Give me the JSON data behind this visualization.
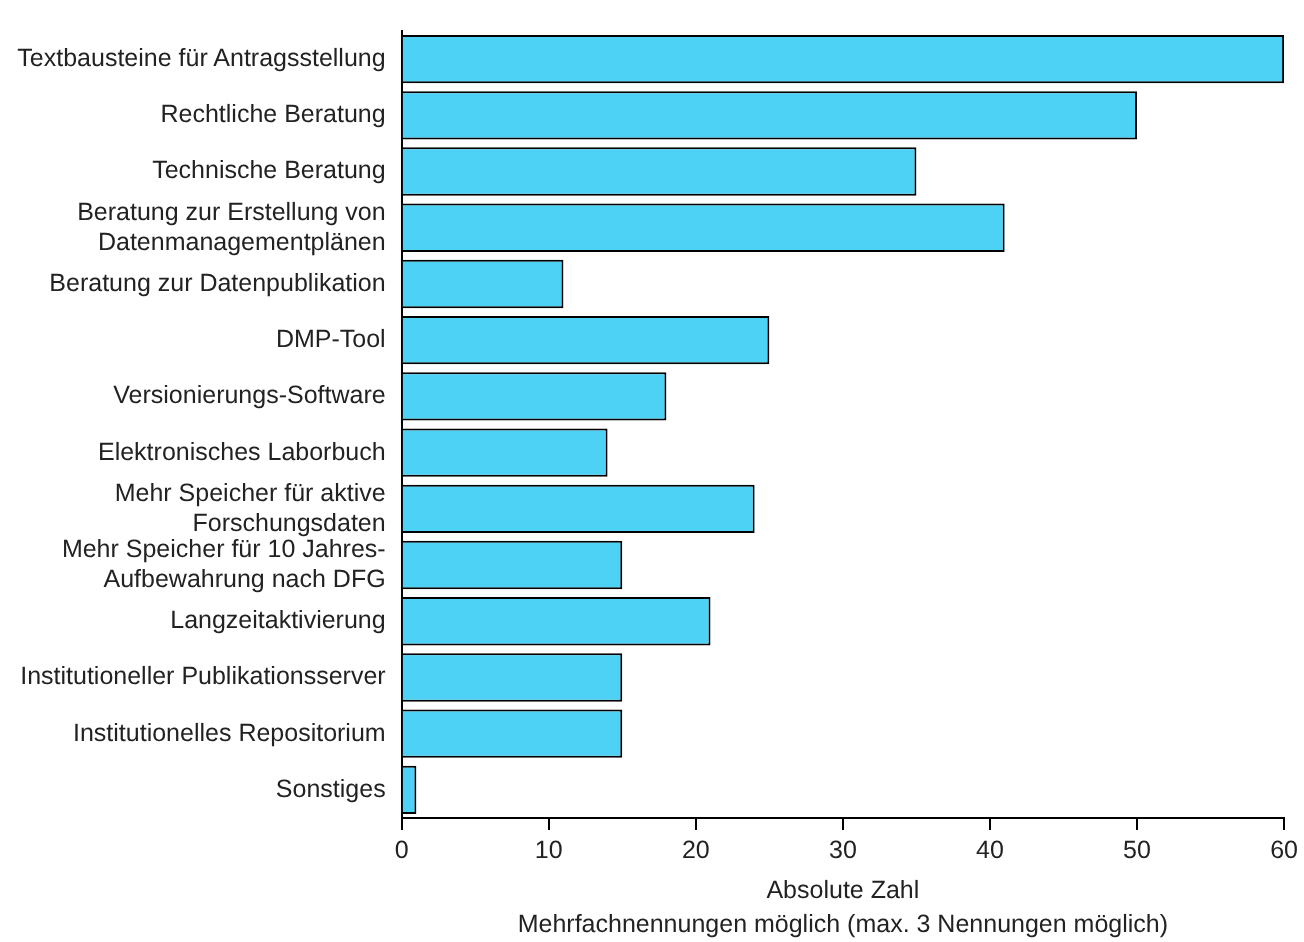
{
  "chart_data": {
    "type": "bar",
    "orientation": "horizontal",
    "xlabel": "Absolute Zahl",
    "annotations": [
      "Mehrfachnennungen möglich (max. 3 Nennungen möglich)"
    ],
    "categories": [
      "Textbausteine für Antragsstellung",
      "Rechtliche Beratung",
      "Technische Beratung",
      "Beratung zur Erstellung von Datenmanagementplänen",
      "Beratung zur Datenpublikation",
      "DMP-Tool",
      "Versionierungs-Software",
      "Elektronisches Laborbuch",
      "Mehr Speicher für aktive Forschungsdaten",
      "Mehr Speicher für 10 Jahres-Aufbewahrung nach DFG",
      "Langzeitaktivierung",
      "Institutioneller Publikationsserver",
      "Institutionelles Repositorium",
      "Sonstiges"
    ],
    "values": [
      60,
      50,
      35,
      41,
      11,
      25,
      18,
      14,
      24,
      15,
      21,
      15,
      15,
      1
    ],
    "color": "#4dd2f5",
    "xlim": [
      0,
      60
    ],
    "xticks": [
      0,
      10,
      20,
      30,
      40,
      50,
      60
    ],
    "grid": false,
    "legend": false
  }
}
